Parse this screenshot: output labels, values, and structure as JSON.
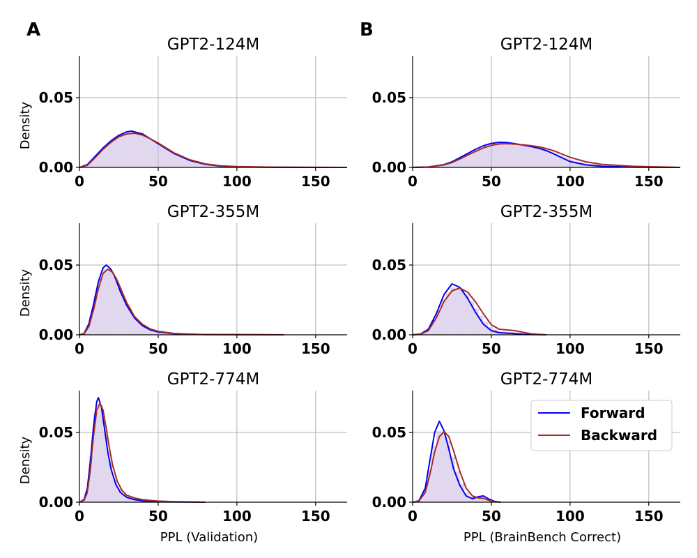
{
  "panel_labels": [
    "A",
    "B"
  ],
  "legend": {
    "placement": "upper-right of bottom-right subplot",
    "entries": [
      {
        "name": "Forward",
        "color": "#0000ee"
      },
      {
        "name": "Backward",
        "color": "#a52a2a"
      }
    ]
  },
  "colors": {
    "forward": "#0000ee",
    "backward": "#a52a2a",
    "hist_fill": "#c9b6e0"
  },
  "chart_data": [
    {
      "type": "area",
      "panel": "A",
      "title": "GPT2-124M",
      "xlabel": "",
      "ylabel": "Density",
      "xlim": [
        0,
        170
      ],
      "ylim": [
        0,
        0.08
      ],
      "xticks": [
        0,
        50,
        100,
        150
      ],
      "yticks": [
        0.0,
        0.05
      ],
      "xtick_labels": [
        "0",
        "50",
        "100",
        "150"
      ],
      "ytick_labels": [
        "0.00",
        "0.05"
      ],
      "grid": true,
      "series": [
        {
          "name": "Forward",
          "x": [
            0,
            5,
            10,
            15,
            20,
            25,
            30,
            33,
            40,
            45,
            50,
            55,
            60,
            70,
            80,
            90,
            100,
            120,
            140,
            170
          ],
          "values": [
            0,
            0.002,
            0.008,
            0.014,
            0.019,
            0.023,
            0.0255,
            0.026,
            0.024,
            0.0205,
            0.017,
            0.0135,
            0.01,
            0.005,
            0.0022,
            0.0009,
            0.0004,
            0.0001,
            0,
            0
          ]
        },
        {
          "name": "Backward",
          "x": [
            0,
            5,
            10,
            15,
            20,
            25,
            30,
            35,
            40,
            45,
            50,
            55,
            60,
            70,
            80,
            90,
            100,
            120,
            140,
            170
          ],
          "values": [
            0,
            0.0015,
            0.007,
            0.013,
            0.018,
            0.022,
            0.024,
            0.0245,
            0.0232,
            0.0205,
            0.0175,
            0.014,
            0.0105,
            0.0055,
            0.0025,
            0.0011,
            0.0006,
            0.0002,
            0.0001,
            0
          ]
        }
      ]
    },
    {
      "type": "area",
      "panel": "B",
      "title": "GPT2-124M",
      "xlabel": "",
      "ylabel": "",
      "xlim": [
        0,
        170
      ],
      "ylim": [
        0,
        0.08
      ],
      "xticks": [
        0,
        50,
        100,
        150
      ],
      "yticks": [
        0.0,
        0.05
      ],
      "xtick_labels": [
        "0",
        "50",
        "100",
        "150"
      ],
      "ytick_labels": [
        "0.00",
        "0.05"
      ],
      "grid": true,
      "series": [
        {
          "name": "Forward",
          "x": [
            0,
            10,
            20,
            25,
            30,
            35,
            40,
            45,
            50,
            55,
            60,
            65,
            70,
            75,
            80,
            85,
            90,
            95,
            100,
            110,
            120,
            140,
            170
          ],
          "values": [
            0,
            0.0003,
            0.002,
            0.004,
            0.007,
            0.01,
            0.013,
            0.0155,
            0.0172,
            0.018,
            0.0178,
            0.017,
            0.016,
            0.015,
            0.0138,
            0.012,
            0.0095,
            0.0068,
            0.0042,
            0.0018,
            0.0008,
            0.0002,
            0
          ]
        },
        {
          "name": "Backward",
          "x": [
            0,
            10,
            20,
            25,
            30,
            35,
            40,
            45,
            50,
            55,
            60,
            65,
            70,
            75,
            80,
            85,
            90,
            95,
            100,
            110,
            120,
            140,
            170
          ],
          "values": [
            0,
            0.0003,
            0.0018,
            0.0035,
            0.006,
            0.0088,
            0.0115,
            0.014,
            0.0158,
            0.0168,
            0.017,
            0.0167,
            0.0162,
            0.0156,
            0.0148,
            0.0135,
            0.0118,
            0.0095,
            0.0072,
            0.004,
            0.0022,
            0.0008,
            0
          ]
        }
      ]
    },
    {
      "type": "area",
      "panel": "A",
      "title": "GPT2-355M",
      "xlabel": "",
      "ylabel": "Density",
      "xlim": [
        0,
        170
      ],
      "ylim": [
        0,
        0.08
      ],
      "xticks": [
        0,
        50,
        100,
        150
      ],
      "yticks": [
        0.0,
        0.05
      ],
      "xtick_labels": [
        "0",
        "50",
        "100",
        "150"
      ],
      "ytick_labels": [
        "0.00",
        "0.05"
      ],
      "grid": true,
      "series": [
        {
          "name": "Forward",
          "x": [
            0,
            3,
            6,
            9,
            12,
            15,
            17,
            20,
            23,
            26,
            30,
            35,
            40,
            45,
            50,
            60,
            70,
            80,
            100,
            130
          ],
          "values": [
            0,
            0.001,
            0.008,
            0.022,
            0.038,
            0.048,
            0.05,
            0.047,
            0.04,
            0.031,
            0.021,
            0.012,
            0.0065,
            0.0035,
            0.002,
            0.0008,
            0.0004,
            0.0002,
            0.0001,
            0
          ]
        },
        {
          "name": "Backward",
          "x": [
            0,
            3,
            6,
            9,
            12,
            15,
            18,
            21,
            24,
            27,
            30,
            35,
            40,
            45,
            50,
            60,
            70,
            80,
            100,
            130
          ],
          "values": [
            0,
            0.0008,
            0.006,
            0.018,
            0.033,
            0.044,
            0.047,
            0.045,
            0.039,
            0.031,
            0.023,
            0.013,
            0.0075,
            0.0042,
            0.0025,
            0.001,
            0.0005,
            0.0002,
            0.0001,
            0
          ]
        }
      ]
    },
    {
      "type": "area",
      "panel": "B",
      "title": "GPT2-355M",
      "xlabel": "",
      "ylabel": "",
      "xlim": [
        0,
        170
      ],
      "ylim": [
        0,
        0.08
      ],
      "xticks": [
        0,
        50,
        100,
        150
      ],
      "yticks": [
        0.0,
        0.05
      ],
      "xtick_labels": [
        "0",
        "50",
        "100",
        "150"
      ],
      "ytick_labels": [
        "0.00",
        "0.05"
      ],
      "grid": true,
      "series": [
        {
          "name": "Forward",
          "x": [
            0,
            5,
            10,
            15,
            20,
            25,
            30,
            35,
            40,
            45,
            50,
            55,
            60,
            65,
            70,
            75,
            80,
            85
          ],
          "values": [
            0,
            0.0005,
            0.004,
            0.015,
            0.029,
            0.0365,
            0.034,
            0.026,
            0.016,
            0.0075,
            0.003,
            0.0015,
            0.0012,
            0.0008,
            0.0004,
            0.0002,
            0.0001,
            0
          ]
        },
        {
          "name": "Backward",
          "x": [
            0,
            5,
            10,
            15,
            20,
            25,
            30,
            35,
            40,
            45,
            50,
            55,
            60,
            65,
            70,
            75,
            80,
            85
          ],
          "values": [
            0,
            0.0004,
            0.003,
            0.012,
            0.024,
            0.0315,
            0.0335,
            0.0305,
            0.0235,
            0.015,
            0.0072,
            0.004,
            0.0035,
            0.003,
            0.0018,
            0.0008,
            0.0003,
            0
          ]
        }
      ]
    },
    {
      "type": "area",
      "panel": "A",
      "title": "GPT2-774M",
      "xlabel": "PPL (Validation)",
      "ylabel": "Density",
      "xlim": [
        0,
        170
      ],
      "ylim": [
        0,
        0.08
      ],
      "xticks": [
        0,
        50,
        100,
        150
      ],
      "yticks": [
        0.0,
        0.05
      ],
      "xtick_labels": [
        "0",
        "50",
        "100",
        "150"
      ],
      "ytick_labels": [
        "0.00",
        "0.05"
      ],
      "grid": true,
      "series": [
        {
          "name": "Forward",
          "x": [
            0,
            3,
            5,
            7,
            9,
            11,
            12,
            14,
            16,
            18,
            20,
            23,
            26,
            30,
            35,
            40,
            50,
            60,
            70,
            80
          ],
          "values": [
            0,
            0.002,
            0.01,
            0.03,
            0.055,
            0.072,
            0.075,
            0.068,
            0.052,
            0.036,
            0.024,
            0.013,
            0.007,
            0.0035,
            0.0018,
            0.001,
            0.0004,
            0.0002,
            0.0001,
            0
          ]
        },
        {
          "name": "Backward",
          "x": [
            0,
            3,
            5,
            7,
            9,
            11,
            13,
            15,
            17,
            19,
            21,
            24,
            27,
            30,
            35,
            40,
            50,
            60,
            70,
            80
          ],
          "values": [
            0,
            0.0015,
            0.007,
            0.024,
            0.048,
            0.066,
            0.071,
            0.066,
            0.053,
            0.039,
            0.027,
            0.015,
            0.0085,
            0.005,
            0.003,
            0.0018,
            0.0008,
            0.0004,
            0.0002,
            0
          ]
        }
      ]
    },
    {
      "type": "area",
      "panel": "B",
      "title": "GPT2-774M",
      "xlabel": "PPL (BrainBench Correct)",
      "ylabel": "",
      "xlim": [
        0,
        170
      ],
      "ylim": [
        0,
        0.08
      ],
      "xticks": [
        0,
        50,
        100,
        150
      ],
      "yticks": [
        0.0,
        0.05
      ],
      "xtick_labels": [
        "0",
        "50",
        "100",
        "150"
      ],
      "ytick_labels": [
        "0.00",
        "0.05"
      ],
      "grid": true,
      "series": [
        {
          "name": "Forward",
          "x": [
            0,
            4,
            8,
            11,
            14,
            17,
            20,
            23,
            26,
            30,
            34,
            38,
            42,
            45,
            48,
            52,
            56
          ],
          "values": [
            0,
            0.001,
            0.01,
            0.03,
            0.05,
            0.058,
            0.051,
            0.038,
            0.024,
            0.012,
            0.0045,
            0.0025,
            0.004,
            0.0045,
            0.0025,
            0.0006,
            0
          ]
        },
        {
          "name": "Backward",
          "x": [
            0,
            4,
            8,
            11,
            14,
            17,
            20,
            23,
            26,
            30,
            34,
            38,
            42,
            45,
            48,
            52,
            56
          ],
          "values": [
            0,
            0.0008,
            0.007,
            0.02,
            0.036,
            0.047,
            0.0505,
            0.047,
            0.037,
            0.022,
            0.01,
            0.0045,
            0.003,
            0.0028,
            0.0015,
            0.0004,
            0
          ]
        }
      ]
    }
  ]
}
